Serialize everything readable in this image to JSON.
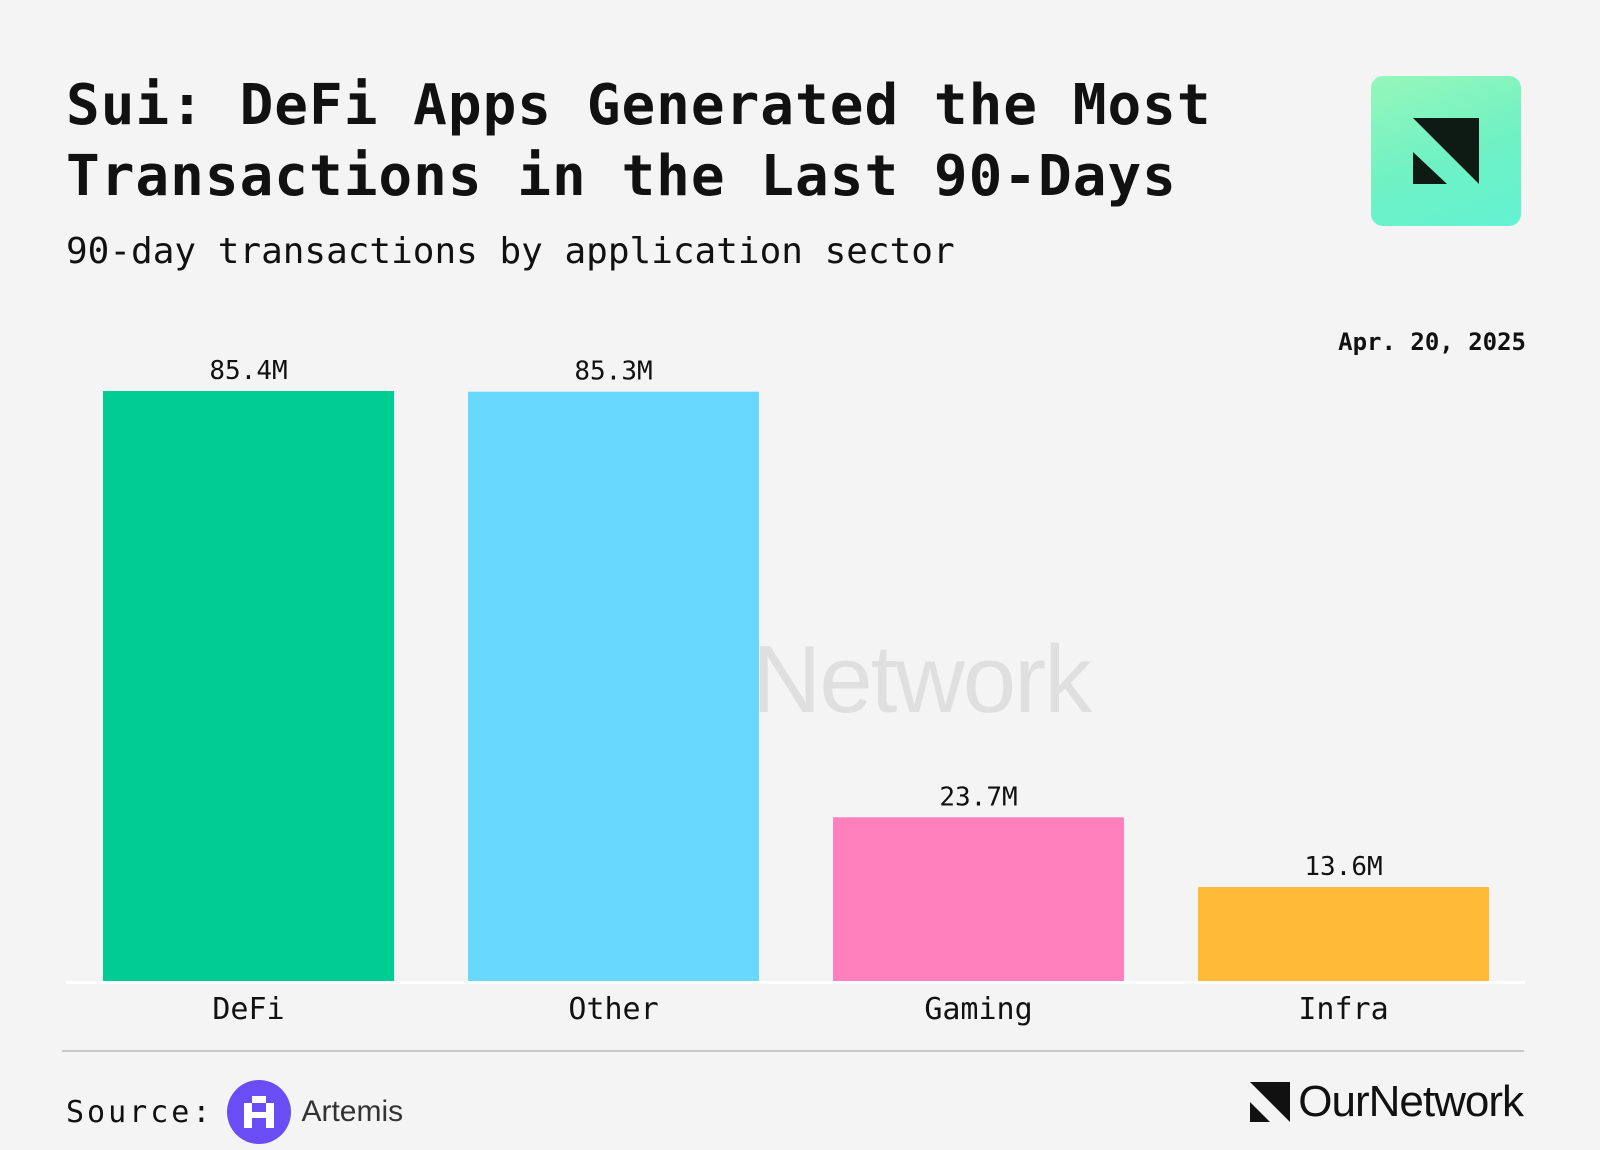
{
  "header": {
    "title": "Sui: DeFi Apps Generated the Most Transactions in the Last 90-Days",
    "subtitle": "90-day transactions by application sector",
    "date": "Apr. 20, 2025"
  },
  "footer": {
    "source_label": "Source:",
    "source_name": "Artemis",
    "brand": "OurNetwork"
  },
  "watermark": "OurNetwork",
  "colors": {
    "background": "#f4f4f4",
    "logo_gradient": [
      "#96f7b9",
      "#63f3d2"
    ],
    "artemis_purple": "#6a4df4"
  },
  "chart_data": {
    "type": "bar",
    "categories": [
      "DeFi",
      "Other",
      "Gaming",
      "Infra"
    ],
    "values": [
      85.4,
      85.3,
      23.7,
      13.6
    ],
    "value_labels": [
      "85.4M",
      "85.3M",
      "23.7M",
      "13.6M"
    ],
    "colors": [
      "#00cc94",
      "#69d8fd",
      "#ff80bd",
      "#ffbb38"
    ],
    "title": "Sui: DeFi Apps Generated the Most Transactions in the Last 90-Days",
    "subtitle": "90-day transactions by application sector",
    "xlabel": "",
    "ylabel": "",
    "ylim": [
      0,
      85.4
    ],
    "grid": false
  }
}
